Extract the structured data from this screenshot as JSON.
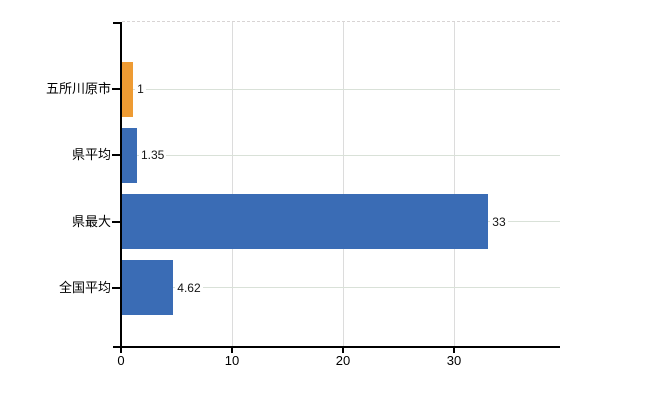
{
  "chart_data": {
    "type": "bar",
    "orientation": "horizontal",
    "title": "",
    "xlabel": "",
    "ylabel": "",
    "categories": [
      "五所川原市",
      "県平均",
      "県最大",
      "全国平均"
    ],
    "values": [
      1,
      1.35,
      33,
      4.62
    ],
    "value_labels": [
      "1",
      "1.35",
      "33",
      "4.62"
    ],
    "bar_colors": [
      "#ee9b33",
      "#3a6cb5",
      "#3a6cb5",
      "#3a6cb5"
    ],
    "x_tick_labels": [
      "0",
      "10",
      "20",
      "30"
    ],
    "x_tick_values": [
      0,
      10,
      20,
      30
    ],
    "xlim": [
      0,
      39.5
    ],
    "grid": true,
    "legend": false
  },
  "colors": {
    "bar_blue": "#3a6cb5",
    "bar_orange": "#ee9b33",
    "axis": "#000000",
    "vertical_gridline": "#dcdcdc",
    "horizontal_gridline": "#d9e1d8",
    "plot_top_border": "#d8d4d4",
    "text": "#000000",
    "background": "#ffffff"
  }
}
